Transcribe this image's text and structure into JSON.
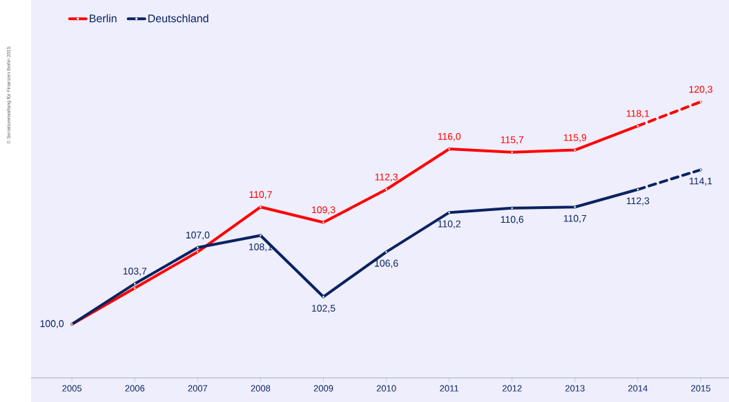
{
  "chart_data": {
    "type": "line",
    "x": [
      2005,
      2006,
      2007,
      2008,
      2009,
      2010,
      2011,
      2012,
      2013,
      2014,
      2015
    ],
    "xlim": [
      2004.35,
      2015.45
    ],
    "xticks": [
      2005,
      2006,
      2007,
      2008,
      2009,
      2010,
      2011,
      2012,
      2013,
      2014,
      2015
    ],
    "ylim": [
      95.1,
      129.6
    ],
    "tick_labels": "x",
    "series": [
      {
        "name": "Berlin",
        "color": "#ff0000",
        "line_style": "solid",
        "values": [
          100.0,
          103.3,
          106.6,
          110.7,
          109.3,
          112.3,
          116.0,
          115.7,
          115.9,
          118.1,
          null
        ],
        "value_labels": [
          null,
          null,
          null,
          "110,7",
          "109,3",
          "112,3",
          "116,0",
          "115,7",
          "115,9",
          "118,1",
          null
        ]
      },
      {
        "name": "Deutschland",
        "color": "#0a2260",
        "line_style": "solid",
        "values": [
          100.0,
          103.7,
          107.0,
          108.1,
          102.5,
          106.6,
          110.2,
          110.6,
          110.7,
          112.3,
          null
        ],
        "value_labels": [
          "100,0",
          "103,7",
          "107,0",
          "108,1",
          "102,5",
          "106,6",
          "110,2",
          "110,6",
          "110,7",
          "112,3",
          null
        ]
      },
      {
        "color": "#ff0000",
        "line_style": "dashed",
        "values": [
          null,
          null,
          null,
          null,
          null,
          null,
          null,
          null,
          null,
          118.1,
          120.3
        ],
        "value_labels": [
          null,
          null,
          null,
          null,
          null,
          null,
          null,
          null,
          null,
          null,
          "120,3"
        ]
      },
      {
        "color": "#0a2260",
        "line_style": "dashed",
        "values": [
          null,
          null,
          null,
          null,
          null,
          null,
          null,
          null,
          null,
          112.3,
          114.1
        ],
        "value_labels": [
          null,
          null,
          null,
          null,
          null,
          null,
          null,
          null,
          null,
          null,
          "114,1"
        ]
      }
    ],
    "marker": "circle",
    "legend": "top left",
    "grid": false,
    "annotations": [
      "© Senatsverwaltung für Finanzen Berlin 2015"
    ]
  }
}
